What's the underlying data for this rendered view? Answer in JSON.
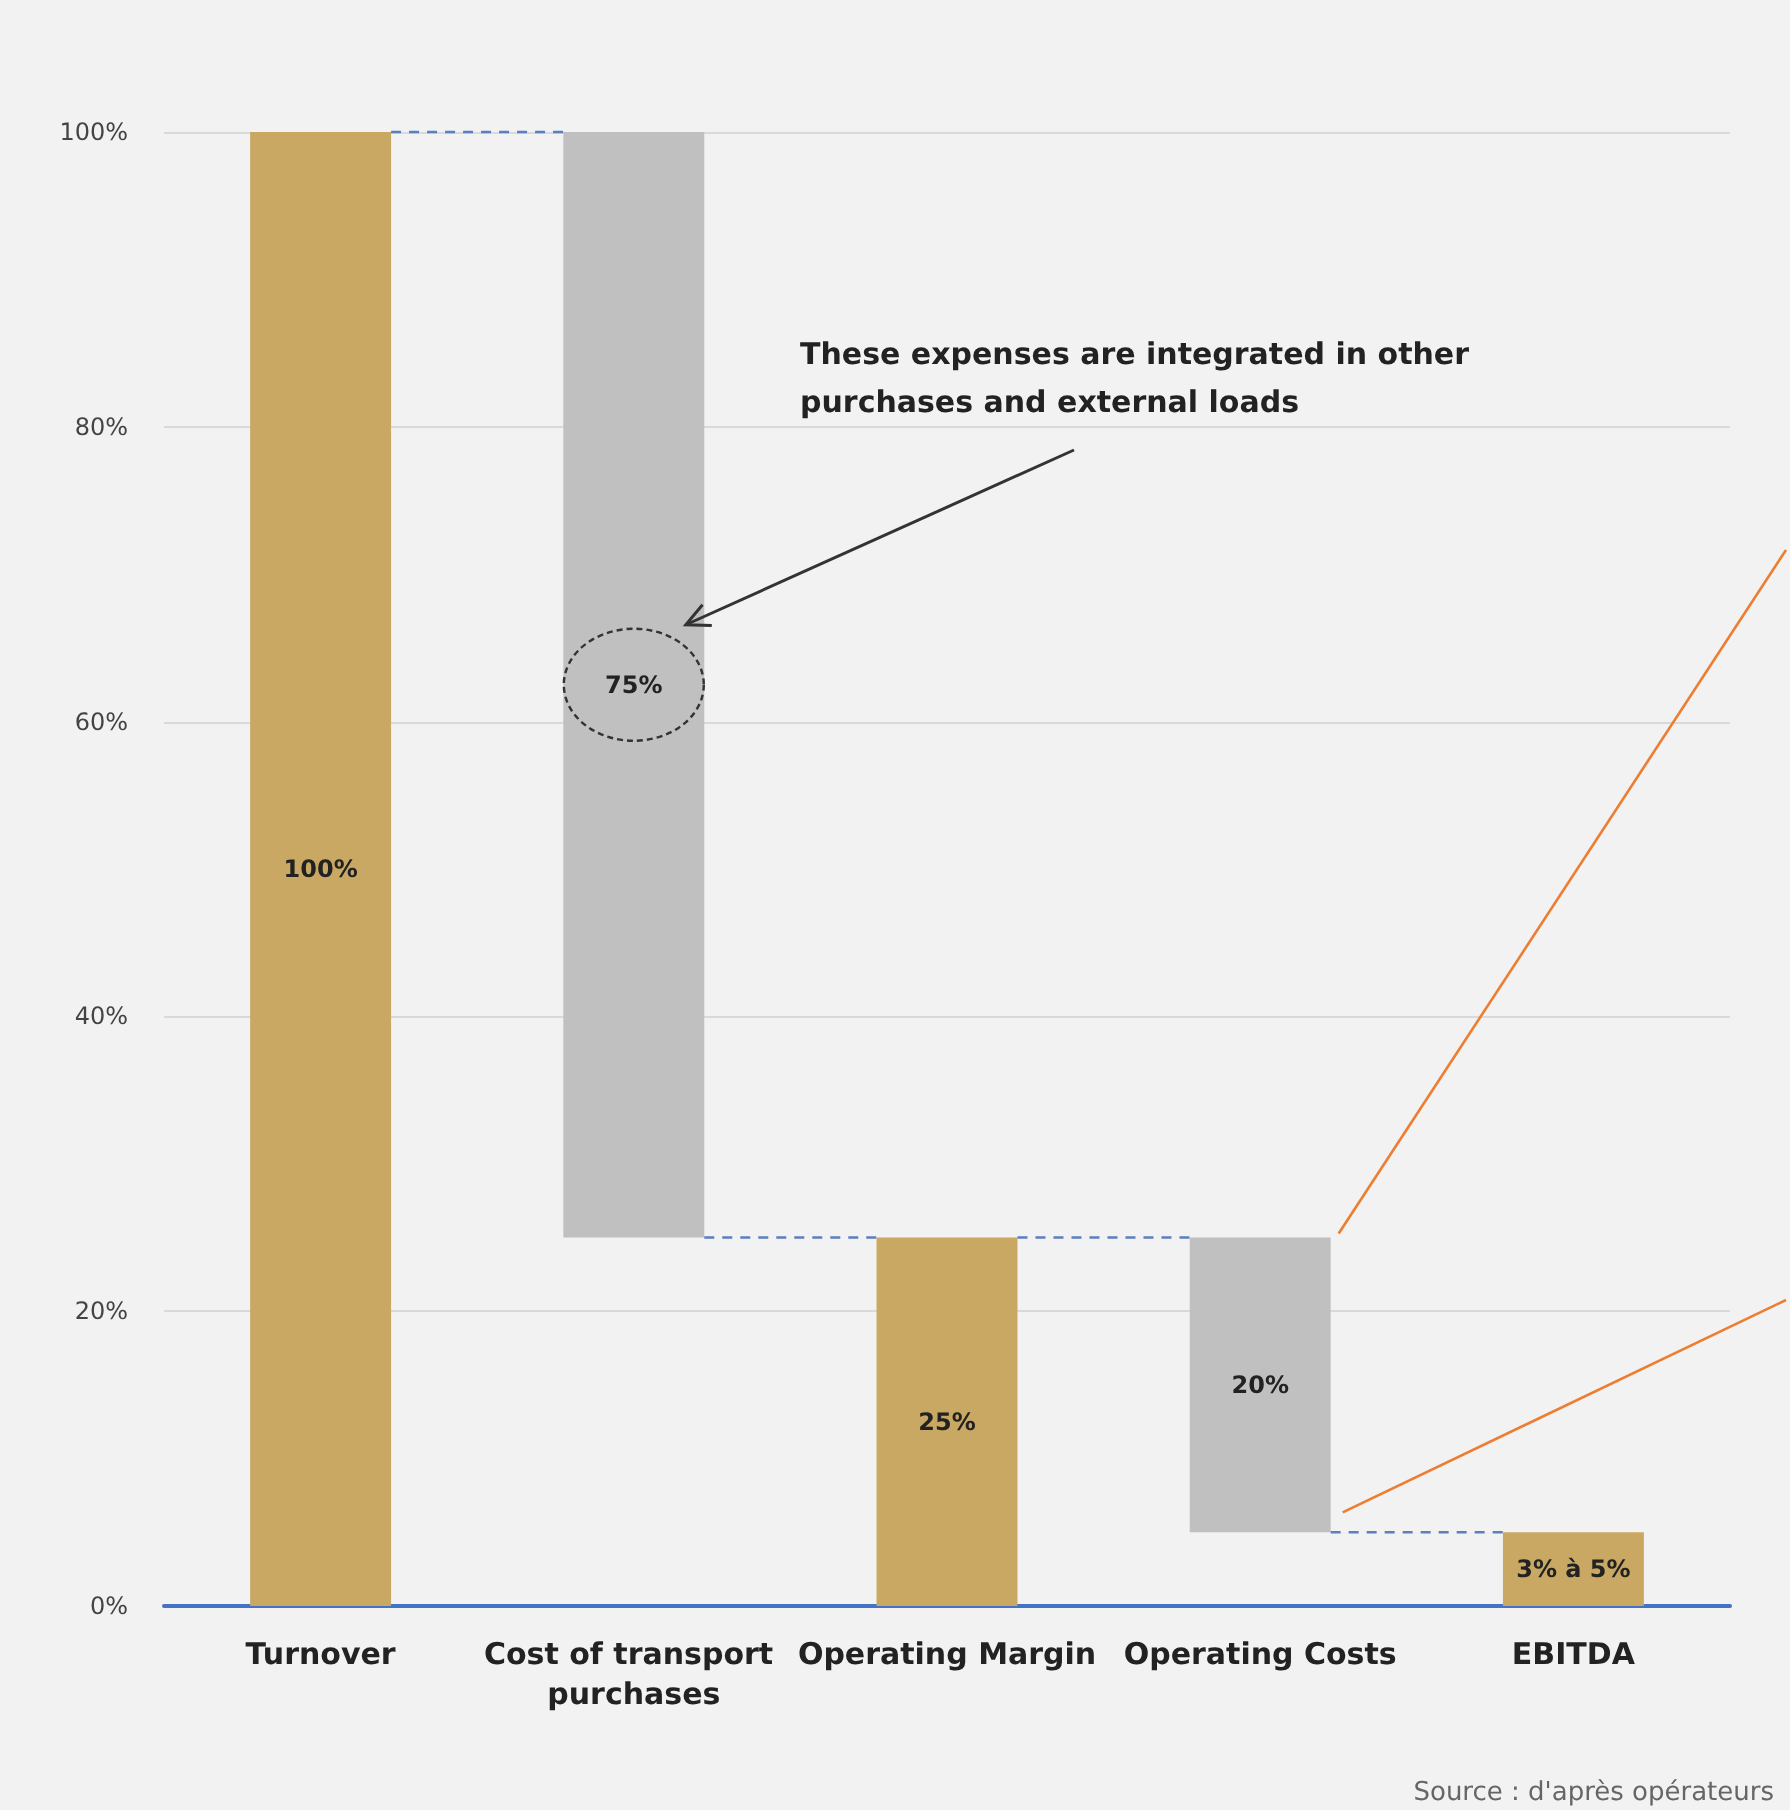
{
  "chart_data": {
    "type": "bar",
    "categories": [
      "Turnover",
      "Cost of transport purchases",
      "Operating Margin",
      "Operating Costs",
      "EBITDA"
    ],
    "values": [
      100,
      75,
      25,
      20,
      5
    ],
    "base": [
      0,
      25,
      0,
      5,
      0
    ],
    "colors": [
      "#c8a862",
      "#c0c0c0",
      "#c8a862",
      "#c0c0c0",
      "#c8a862"
    ],
    "value_labels": [
      "100%",
      "75%",
      "25%",
      "20%",
      "3% à 5%"
    ],
    "ylim": [
      0,
      100
    ],
    "yticks": [
      {
        "value": 0,
        "label": "0%"
      },
      {
        "value": 20,
        "label": "20%"
      },
      {
        "value": 40,
        "label": "40%"
      },
      {
        "value": 60,
        "label": "60%"
      },
      {
        "value": 80,
        "label": "80%"
      },
      {
        "value": 100,
        "label": "100%"
      }
    ],
    "grid": "y",
    "annotations": [
      "These expenses are integrated in other purchases and external loads",
      "Source : d'après opérateurs"
    ]
  }
}
